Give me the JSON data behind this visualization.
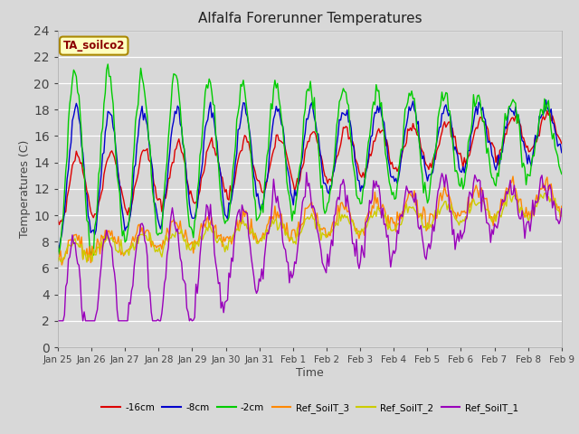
{
  "title": "Alfalfa Forerunner Temperatures",
  "xlabel": "Time",
  "ylabel": "Temperatures (C)",
  "ylim": [
    0,
    24
  ],
  "yticks": [
    0,
    2,
    4,
    6,
    8,
    10,
    12,
    14,
    16,
    18,
    20,
    22,
    24
  ],
  "annotation_text": "TA_soilco2",
  "annotation_color": "#8b0000",
  "annotation_bg": "#ffffc0",
  "annotation_border": "#aa8800",
  "fig_bg": "#d8d8d8",
  "plot_bg": "#d8d8d8",
  "colors": {
    "-16cm": "#dd0000",
    "-8cm": "#0000cc",
    "-2cm": "#00cc00",
    "Ref_SoilT_3": "#ff8800",
    "Ref_SoilT_2": "#cccc00",
    "Ref_SoilT_1": "#9900bb"
  },
  "legend_labels": [
    "-16cm",
    "-8cm",
    "-2cm",
    "Ref_SoilT_3",
    "Ref_SoilT_2",
    "Ref_SoilT_1"
  ],
  "x_tick_labels": [
    "Jan 25",
    "Jan 26",
    "Jan 27",
    "Jan 28",
    "Jan 29",
    "Jan 30",
    "Jan 31",
    "Feb 1",
    "Feb 2",
    "Feb 3",
    "Feb 4",
    "Feb 5",
    "Feb 6",
    "Feb 7",
    "Feb 8",
    "Feb 9"
  ],
  "line_width": 1.0
}
